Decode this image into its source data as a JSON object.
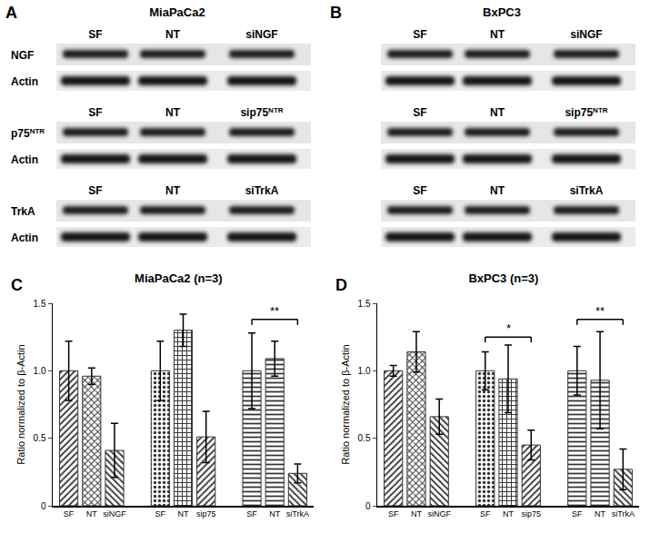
{
  "blots": [
    {
      "label": "A",
      "title": "MiaPaCa2",
      "rows": [
        {
          "lanes": [
            "SF",
            "NT",
            "siNGF"
          ],
          "target": "NGF",
          "control": "Actin"
        },
        {
          "lanes": [
            "SF",
            "NT",
            "sip75NTR"
          ],
          "target": "p75NTR",
          "control": "Actin"
        },
        {
          "lanes": [
            "SF",
            "NT",
            "siTrkA"
          ],
          "target": "TrkA",
          "control": "Actin"
        }
      ]
    },
    {
      "label": "B",
      "title": "BxPC3",
      "rows": [
        {
          "lanes": [
            "SF",
            "NT",
            "siNGF"
          ]
        },
        {
          "lanes": [
            "SF",
            "NT",
            "sip75NTR"
          ]
        },
        {
          "lanes": [
            "SF",
            "NT",
            "siTrkA"
          ]
        }
      ]
    }
  ],
  "chart_data": [
    {
      "label": "C",
      "type": "bar",
      "title": "MiaPaCa2 (n=3)",
      "ylabel": "Ratio normalized to β-Actin",
      "categories": [
        "SF",
        "NT",
        "siNGF",
        null,
        "SF",
        "NT",
        "sip75",
        null,
        "SF",
        "NT",
        "siTrkA"
      ],
      "values": [
        1.0,
        0.96,
        0.41,
        null,
        1.0,
        1.3,
        0.51,
        null,
        1.0,
        1.09,
        0.24
      ],
      "errors": [
        0.22,
        0.06,
        0.2,
        null,
        0.22,
        0.12,
        0.19,
        null,
        0.28,
        0.13,
        0.07
      ],
      "color": "#333333",
      "ylim": [
        0,
        1.5
      ],
      "yticks": [
        0,
        0.5,
        {
          "value": 1,
          "label": "1.0"
        },
        1.5
      ],
      "significance": [
        {
          "text": "**",
          "x": [
            8,
            10
          ],
          "y": 1.38
        }
      ]
    },
    {
      "label": "D",
      "type": "bar",
      "title": "BxPC3 (n=3)",
      "ylabel": "Ratio normalized to β-Actin",
      "categories": [
        "SF",
        "NT",
        "siNGF",
        null,
        "SF",
        "NT",
        "sip75",
        null,
        "SF",
        "NT",
        "siTrkA"
      ],
      "values": [
        1.0,
        1.14,
        0.66,
        null,
        1.0,
        0.94,
        0.45,
        null,
        1.0,
        0.93,
        0.27
      ],
      "errors": [
        0.04,
        0.15,
        0.13,
        null,
        0.14,
        0.25,
        0.11,
        null,
        0.18,
        0.36,
        0.15
      ],
      "color": "#333333",
      "ylim": [
        0,
        1.5
      ],
      "yticks": [
        0,
        0.5,
        {
          "value": 1,
          "label": "1.0"
        },
        1.5
      ],
      "significance": [
        {
          "text": "*",
          "x": [
            4,
            6
          ],
          "y": 1.25
        },
        {
          "text": "**",
          "x": [
            8,
            10
          ],
          "y": 1.38
        }
      ]
    }
  ]
}
